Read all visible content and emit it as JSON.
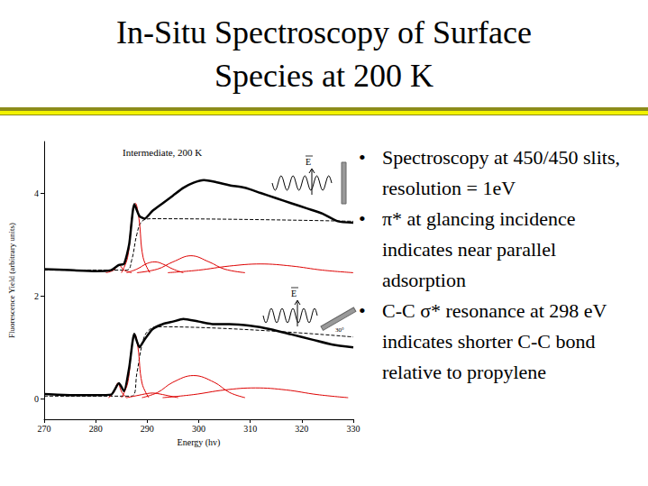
{
  "slide": {
    "title": [
      "In-Situ Spectroscopy of Surface",
      "Species at 200 K"
    ],
    "bullets": [
      "Spectroscopy at 450/450 slits, resolution = 1eV",
      "π* at glancing incidence indicates near parallel adsorption",
      "C-C σ* resonance at 298 eV indicates shorter C-C bond relative to propylene"
    ]
  },
  "chart_data": {
    "type": "line",
    "annotations": {
      "panel_label": "Intermediate, 200 K",
      "field_label": "E",
      "angle_label": "30°"
    },
    "xlabel": "Energy (hv)",
    "ylabel": "Fluorescence Yield (arbitrary units)",
    "xlim": [
      270,
      330
    ],
    "xticks": [
      270,
      280,
      290,
      300,
      310,
      320,
      330
    ],
    "ylim": [
      -0.4,
      5
    ],
    "yticks": [
      0,
      2,
      4
    ],
    "grid": false,
    "series": [
      {
        "color": "#000000",
        "line_style": "solid",
        "x": [
          270,
          275,
          280,
          283,
          284.5,
          285.5,
          286.5,
          287.5,
          288.5,
          289.5,
          291,
          293,
          295,
          297,
          299,
          301,
          303,
          306,
          309,
          312,
          315,
          318,
          321,
          324,
          327,
          330
        ],
        "values": [
          2.52,
          2.5,
          2.48,
          2.5,
          2.6,
          2.62,
          3.0,
          3.78,
          3.55,
          3.5,
          3.65,
          3.8,
          3.95,
          4.1,
          4.2,
          4.25,
          4.22,
          4.15,
          4.1,
          4.0,
          3.9,
          3.8,
          3.7,
          3.6,
          3.45,
          3.42
        ]
      },
      {
        "color": "#000000",
        "line_style": "dashed",
        "x": [
          270,
          286,
          287,
          288,
          289,
          291,
          330
        ],
        "values": [
          2.5,
          2.5,
          2.7,
          3.2,
          3.45,
          3.5,
          3.45
        ]
      },
      {
        "color": "#dd0000",
        "line_style": "solid",
        "x": [
          282,
          283.5,
          284.5,
          285.5,
          287
        ],
        "values": [
          2.45,
          2.5,
          2.6,
          2.5,
          2.45
        ]
      },
      {
        "color": "#dd0000",
        "line_style": "solid",
        "x": [
          285,
          286.2,
          287,
          287.7,
          288.4,
          289.2,
          290.5
        ],
        "values": [
          2.45,
          2.75,
          3.5,
          3.8,
          3.5,
          2.75,
          2.45
        ]
      },
      {
        "color": "#dd0000",
        "line_style": "solid",
        "x": [
          286,
          288,
          290,
          291.5,
          293,
          295,
          297
        ],
        "values": [
          2.45,
          2.52,
          2.63,
          2.66,
          2.62,
          2.52,
          2.45
        ]
      },
      {
        "color": "#dd0000",
        "line_style": "solid",
        "x": [
          288,
          292,
          295,
          298.5,
          302,
          305,
          309
        ],
        "values": [
          2.45,
          2.52,
          2.66,
          2.78,
          2.66,
          2.52,
          2.45
        ]
      },
      {
        "color": "#dd0000",
        "line_style": "solid",
        "x": [
          294,
          300,
          306,
          312,
          318,
          324,
          330
        ],
        "values": [
          2.45,
          2.5,
          2.58,
          2.62,
          2.58,
          2.5,
          2.45
        ]
      },
      {
        "color": "#000000",
        "line_style": "solid",
        "x": [
          270,
          275,
          280,
          283,
          284.5,
          285.5,
          286.5,
          287.5,
          288.5,
          289.5,
          291,
          293,
          295,
          297,
          300,
          303,
          306,
          310,
          314,
          318,
          322,
          326,
          330
        ],
        "values": [
          0.09,
          0.07,
          0.07,
          0.08,
          0.3,
          0.15,
          0.6,
          1.26,
          1.0,
          1.15,
          1.35,
          1.45,
          1.5,
          1.55,
          1.5,
          1.45,
          1.45,
          1.42,
          1.35,
          1.25,
          1.15,
          1.05,
          1.0
        ]
      },
      {
        "color": "#000000",
        "line_style": "dashed",
        "x": [
          270,
          287,
          288,
          289,
          290,
          292,
          330
        ],
        "values": [
          0.05,
          0.05,
          0.5,
          1.05,
          1.3,
          1.4,
          1.2
        ]
      },
      {
        "color": "#dd0000",
        "line_style": "solid",
        "x": [
          282.5,
          283.5,
          284.3,
          285.1,
          286
        ],
        "values": [
          0.02,
          0.12,
          0.3,
          0.12,
          0.02
        ]
      },
      {
        "color": "#dd0000",
        "line_style": "solid",
        "x": [
          285,
          286.2,
          287,
          287.6,
          288.2,
          289,
          290.3
        ],
        "values": [
          0.02,
          0.3,
          1.0,
          1.25,
          1.0,
          0.3,
          0.02
        ]
      },
      {
        "color": "#dd0000",
        "line_style": "solid",
        "x": [
          286,
          288,
          290,
          291,
          292,
          294,
          296
        ],
        "values": [
          0.02,
          0.06,
          0.1,
          0.11,
          0.1,
          0.06,
          0.02
        ]
      },
      {
        "color": "#dd0000",
        "line_style": "solid",
        "x": [
          289,
          292,
          295,
          299,
          303,
          306,
          309
        ],
        "values": [
          0.02,
          0.12,
          0.32,
          0.45,
          0.32,
          0.12,
          0.02
        ]
      },
      {
        "color": "#dd0000",
        "line_style": "solid",
        "x": [
          293,
          299,
          305,
          311,
          317,
          323,
          329
        ],
        "values": [
          0.02,
          0.08,
          0.17,
          0.21,
          0.17,
          0.08,
          0.02
        ]
      }
    ]
  }
}
